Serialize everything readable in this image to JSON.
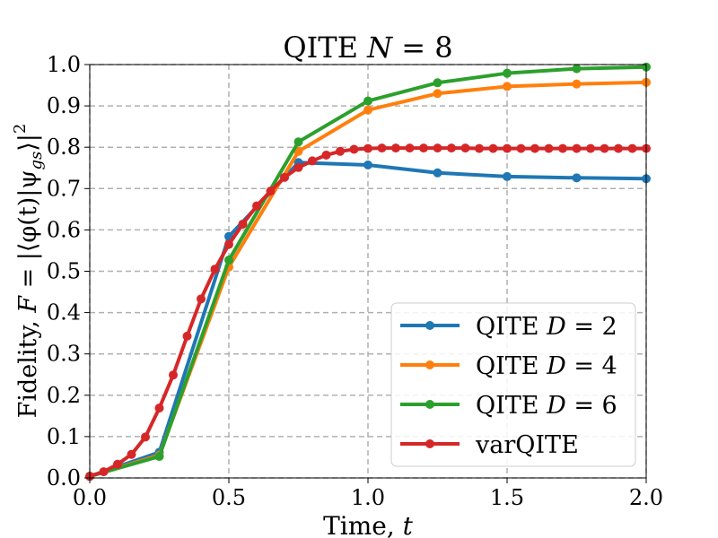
{
  "chart_data": {
    "type": "line",
    "title": "QITE N = 8",
    "title_parts": {
      "main": "QITE ",
      "var": "N",
      "rest": " = 8"
    },
    "xlabel": "Time, t",
    "xlabel_parts": {
      "main": "Time, ",
      "var": "t"
    },
    "ylabel": "Fidelity, F = |⟨φ(t)|ψ_gs⟩|²",
    "ylabel_parts": {
      "main": "Fidelity, ",
      "var": "F",
      "eq": " = |⟨φ(t)|ψ",
      "sub": "gs",
      "close": "⟩|",
      "sup": "2"
    },
    "xlim": [
      0.0,
      2.0
    ],
    "ylim": [
      0.0,
      1.0
    ],
    "xticks": [
      0.0,
      0.5,
      1.0,
      1.5,
      2.0
    ],
    "xtick_labels": [
      "0.0",
      "0.5",
      "1.0",
      "1.5",
      "2.0"
    ],
    "yticks": [
      0.0,
      0.1,
      0.2,
      0.3,
      0.4,
      0.5,
      0.6,
      0.7,
      0.8,
      0.9,
      1.0
    ],
    "ytick_labels": [
      "0.0",
      "0.1",
      "0.2",
      "0.3",
      "0.4",
      "0.5",
      "0.6",
      "0.7",
      "0.8",
      "0.9",
      "1.0"
    ],
    "grid": true,
    "legend_position": "lower-right",
    "series": [
      {
        "name": "QITE D = 2",
        "label_main": "QITE ",
        "label_var": "D",
        "label_rest": " = 2",
        "color": "#1f77b4",
        "x": [
          0.0,
          0.25,
          0.5,
          0.75,
          1.0,
          1.25,
          1.5,
          1.75,
          2.0
        ],
        "y": [
          0.004,
          0.062,
          0.584,
          0.763,
          0.757,
          0.738,
          0.729,
          0.726,
          0.724
        ]
      },
      {
        "name": "QITE D = 4",
        "label_main": "QITE ",
        "label_var": "D",
        "label_rest": " = 4",
        "color": "#ff7f0e",
        "x": [
          0.0,
          0.25,
          0.5,
          0.75,
          1.0,
          1.25,
          1.5,
          1.75,
          2.0
        ],
        "y": [
          0.004,
          0.055,
          0.51,
          0.79,
          0.89,
          0.93,
          0.947,
          0.953,
          0.957
        ]
      },
      {
        "name": "QITE D = 6",
        "label_main": "QITE ",
        "label_var": "D",
        "label_rest": " = 6",
        "color": "#2ca02c",
        "x": [
          0.0,
          0.25,
          0.5,
          0.75,
          1.0,
          1.25,
          1.5,
          1.75,
          2.0
        ],
        "y": [
          0.004,
          0.052,
          0.527,
          0.813,
          0.912,
          0.956,
          0.979,
          0.99,
          0.994
        ]
      },
      {
        "name": "varQITE",
        "label_main": "varQITE",
        "label_var": "",
        "label_rest": "",
        "color": "#d62728",
        "x": [
          0.0,
          0.05,
          0.1,
          0.15,
          0.2,
          0.25,
          0.3,
          0.35,
          0.4,
          0.45,
          0.5,
          0.55,
          0.6,
          0.65,
          0.7,
          0.75,
          0.8,
          0.85,
          0.9,
          0.95,
          1.0,
          1.05,
          1.1,
          1.15,
          1.2,
          1.25,
          1.3,
          1.35,
          1.4,
          1.45,
          1.5,
          1.55,
          1.6,
          1.65,
          1.7,
          1.75,
          1.8,
          1.85,
          1.9,
          1.95,
          2.0
        ],
        "y": [
          0.004,
          0.015,
          0.033,
          0.057,
          0.099,
          0.169,
          0.249,
          0.343,
          0.433,
          0.505,
          0.565,
          0.614,
          0.658,
          0.694,
          0.727,
          0.751,
          0.767,
          0.781,
          0.79,
          0.795,
          0.797,
          0.798,
          0.798,
          0.798,
          0.798,
          0.798,
          0.798,
          0.798,
          0.797,
          0.797,
          0.797,
          0.797,
          0.797,
          0.797,
          0.797,
          0.797,
          0.797,
          0.797,
          0.797,
          0.797,
          0.797
        ]
      }
    ]
  }
}
